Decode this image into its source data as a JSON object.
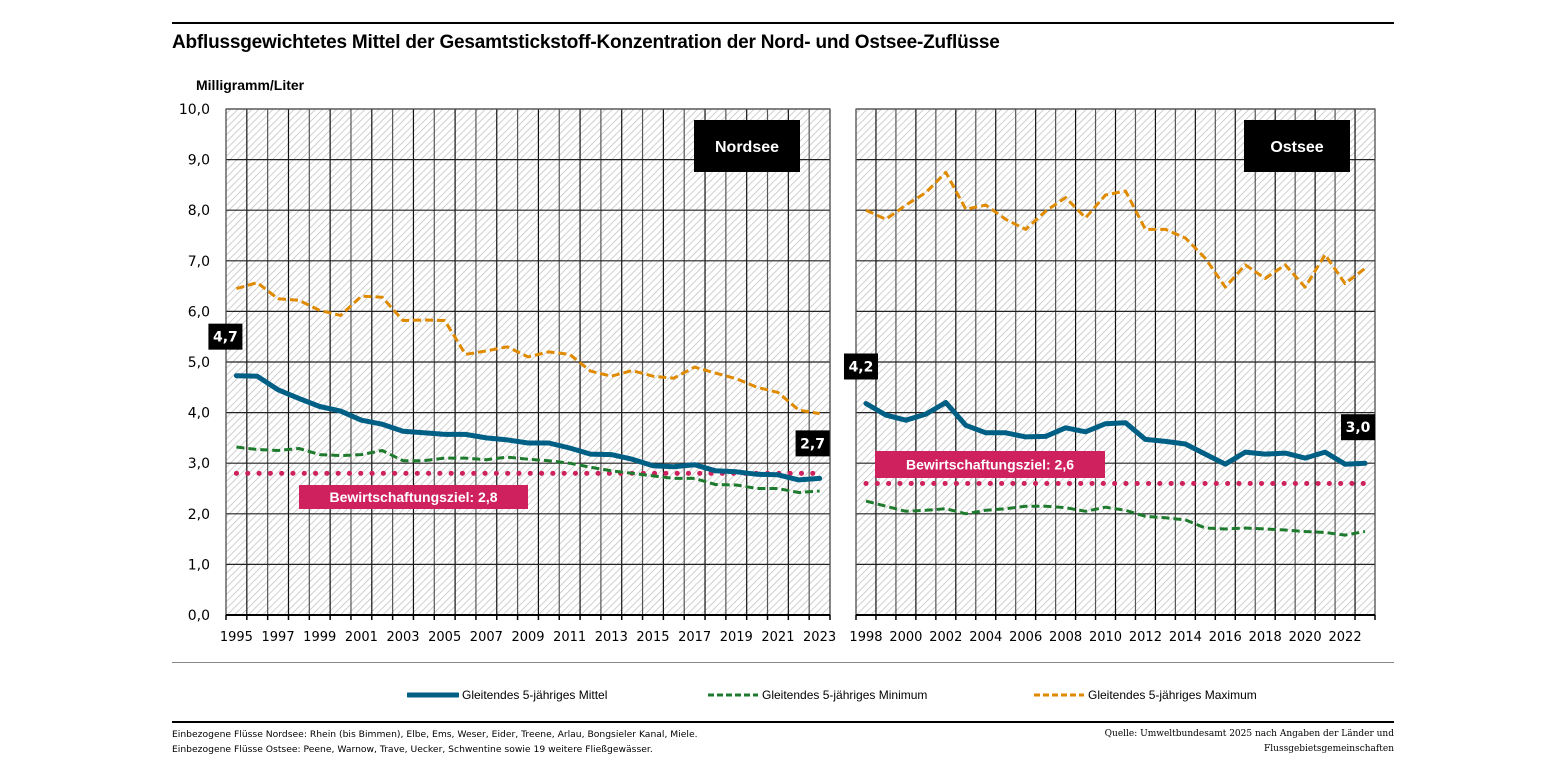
{
  "header": {
    "title": "Abflussgewichtetes Mittel der Gesamtstickstoff-Konzentration der Nord- und Ostsee-Zuflüsse",
    "unit": "Milligramm/Liter"
  },
  "colors": {
    "mean": "#005f85",
    "min": "#1e7b2e",
    "max": "#e08a00",
    "target": "#d0215f",
    "label_bg": "#000000"
  },
  "legend": [
    {
      "label": "Gleitendes 5-jähriges Mittel",
      "series": "mean"
    },
    {
      "label": "Gleitendes 5-jähriges Minimum",
      "series": "min"
    },
    {
      "label": "Gleitendes 5-jähriges Maximum",
      "series": "max"
    }
  ],
  "footer": {
    "left": [
      "Einbezogene Flüsse Nordsee: Rhein (bis Bimmen), Elbe, Ems, Weser, Eider, Treene, Arlau, Bongsieler Kanal, Miele.",
      "Einbezogene Flüsse Ostsee: Peene, Warnow, Trave, Uecker, Schwentine sowie 19 weitere Fließgewässer."
    ],
    "right": [
      "Quelle: Umweltbundesamt 2025 nach Angaben der Länder und",
      "Flussgebietsgemeinschaften"
    ]
  },
  "chart_data": [
    {
      "type": "line",
      "title": "Nordsee",
      "ylabel": "Milligramm/Liter",
      "ylim": [
        0,
        10
      ],
      "yticks": [
        "0,0",
        "1,0",
        "2,0",
        "3,0",
        "4,0",
        "5,0",
        "6,0",
        "7,0",
        "8,0",
        "9,0",
        "10,0"
      ],
      "x": [
        1995,
        1996,
        1997,
        1998,
        1999,
        2000,
        2001,
        2002,
        2003,
        2004,
        2005,
        2006,
        2007,
        2008,
        2009,
        2010,
        2011,
        2012,
        2013,
        2014,
        2015,
        2016,
        2017,
        2018,
        2019,
        2020,
        2021,
        2022,
        2023
      ],
      "xtick_labels": [
        "1995",
        "1997",
        "1999",
        "2001",
        "2003",
        "2005",
        "2007",
        "2009",
        "2011",
        "2013",
        "2015",
        "2017",
        "2019",
        "2021",
        "2023"
      ],
      "grid": true,
      "series": [
        {
          "name": "Gleitendes 5-jähriges Mittel",
          "key": "mean",
          "style": "solid",
          "values": [
            4.73,
            4.72,
            4.45,
            4.28,
            4.12,
            4.03,
            3.85,
            3.77,
            3.63,
            3.6,
            3.57,
            3.57,
            3.5,
            3.46,
            3.4,
            3.4,
            3.3,
            3.18,
            3.17,
            3.08,
            2.95,
            2.93,
            2.97,
            2.85,
            2.83,
            2.78,
            2.77,
            2.67,
            2.7
          ]
        },
        {
          "name": "Gleitendes 5-jähriges Minimum",
          "key": "min",
          "style": "dashed",
          "values": [
            3.32,
            3.27,
            3.25,
            3.29,
            3.17,
            3.15,
            3.17,
            3.25,
            3.05,
            3.05,
            3.1,
            3.1,
            3.07,
            3.12,
            3.08,
            3.05,
            3.0,
            2.92,
            2.85,
            2.8,
            2.75,
            2.7,
            2.7,
            2.58,
            2.57,
            2.5,
            2.5,
            2.42,
            2.45
          ]
        },
        {
          "name": "Gleitendes 5-jähriges Maximum",
          "key": "max",
          "style": "dashed",
          "values": [
            6.45,
            6.57,
            6.25,
            6.22,
            6.02,
            5.92,
            6.3,
            6.28,
            5.82,
            5.83,
            5.82,
            5.15,
            5.22,
            5.3,
            5.1,
            5.2,
            5.15,
            4.82,
            4.72,
            4.83,
            4.72,
            4.68,
            4.9,
            4.78,
            4.67,
            4.5,
            4.4,
            4.05,
            3.98
          ]
        }
      ],
      "target": {
        "value": 2.8,
        "label": "Bewirtschaftungsziel: 2,8"
      },
      "annotations": [
        {
          "text": "4,7",
          "x": 1995,
          "y": 4.73
        },
        {
          "text": "2,7",
          "x": 2023,
          "y": 2.7
        }
      ]
    },
    {
      "type": "line",
      "title": "Ostsee",
      "ylim": [
        0,
        10
      ],
      "x": [
        1998,
        1999,
        2000,
        2001,
        2002,
        2003,
        2004,
        2005,
        2006,
        2007,
        2008,
        2009,
        2010,
        2011,
        2012,
        2013,
        2014,
        2015,
        2016,
        2017,
        2018,
        2019,
        2020,
        2021,
        2022,
        2023
      ],
      "xtick_labels": [
        "1998",
        "2000",
        "2002",
        "2004",
        "2006",
        "2008",
        "2010",
        "2012",
        "2014",
        "2016",
        "2018",
        "2020",
        "2022"
      ],
      "grid": true,
      "series": [
        {
          "name": "Gleitendes 5-jähriges Mittel",
          "key": "mean",
          "style": "solid",
          "values": [
            4.18,
            3.95,
            3.85,
            3.97,
            4.2,
            3.75,
            3.6,
            3.6,
            3.52,
            3.53,
            3.7,
            3.62,
            3.78,
            3.8,
            3.47,
            3.43,
            3.38,
            3.18,
            2.98,
            3.22,
            3.18,
            3.2,
            3.1,
            3.22,
            2.98,
            3.0
          ]
        },
        {
          "name": "Gleitendes 5-jähriges Minimum",
          "key": "min",
          "style": "dashed",
          "values": [
            2.25,
            2.15,
            2.05,
            2.07,
            2.1,
            2.0,
            2.07,
            2.1,
            2.15,
            2.15,
            2.12,
            2.05,
            2.13,
            2.07,
            1.95,
            1.92,
            1.88,
            1.72,
            1.7,
            1.72,
            1.7,
            1.68,
            1.65,
            1.63,
            1.58,
            1.65
          ]
        },
        {
          "name": "Gleitendes 5-jähriges Maximum",
          "key": "max",
          "style": "dashed",
          "values": [
            8.0,
            7.82,
            8.1,
            8.35,
            8.75,
            8.02,
            8.1,
            7.82,
            7.62,
            7.98,
            8.25,
            7.85,
            8.3,
            8.38,
            7.62,
            7.62,
            7.45,
            7.05,
            6.48,
            6.92,
            6.65,
            6.92,
            6.48,
            7.12,
            6.55,
            6.85
          ]
        }
      ],
      "target": {
        "value": 2.6,
        "label": "Bewirtschaftungsziel: 2,6"
      },
      "annotations": [
        {
          "text": "4,2",
          "x": 1998,
          "y": 4.18
        },
        {
          "text": "3,0",
          "x": 2023,
          "y": 3.0
        }
      ]
    }
  ]
}
